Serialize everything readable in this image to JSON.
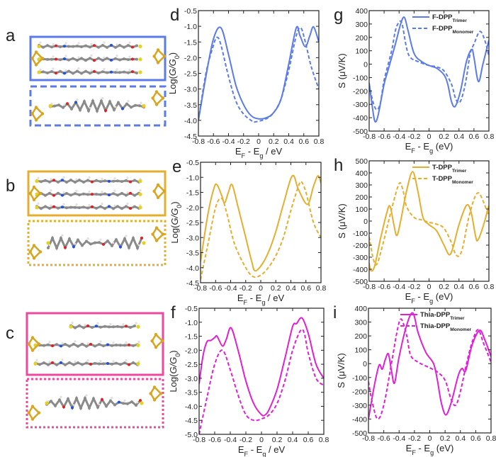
{
  "panel_letters": {
    "a": "a",
    "b": "b",
    "c": "c",
    "d": "d",
    "e": "e",
    "f": "f",
    "g": "g",
    "h": "h",
    "i": "i"
  },
  "colors": {
    "F-DPP": "#5b7be8",
    "T-DPP": "#e6ae2e",
    "Thia-DPP": "#e01fd6",
    "frame_a": "#5b7be8",
    "frame_b": "#e6ae2e",
    "frame_c": "#ec4a9e",
    "gold": "#d9a520",
    "carbon": "#8a8a8a",
    "sulfur": "#e8d020",
    "oxygen": "#e02020",
    "nitrogen": "#2050e0",
    "hydrogen": "#e6e6e6"
  },
  "structures": [
    {
      "panel": "a",
      "trimer_frame": "solid",
      "monomer_frame": "dashed",
      "color": "#5b7be8"
    },
    {
      "panel": "b",
      "trimer_frame": "solid",
      "monomer_frame": "dotted",
      "color": "#e6ae2e"
    },
    {
      "panel": "c",
      "trimer_frame": "solid",
      "monomer_frame": "dotted",
      "color": "#ec4a9e"
    }
  ],
  "chart_data": [
    {
      "panel": "d",
      "type": "line",
      "color": "#5b7be8",
      "xlabel_parts": [
        [
          "E",
          ""
        ],
        [
          "F",
          "sub"
        ],
        [
          " - E",
          ""
        ],
        [
          "g",
          "sub"
        ],
        [
          " / eV",
          ""
        ]
      ],
      "ylabel_parts": [
        [
          "Log(",
          ""
        ],
        [
          "G/G",
          "i"
        ],
        [
          "0",
          "sub"
        ],
        [
          ")",
          ""
        ]
      ],
      "xlim": [
        -0.8,
        0.8
      ],
      "ylim": [
        -4.5,
        -0.5
      ],
      "xticks": [
        "-0.8",
        "-0.6",
        "-0.4",
        "-0.2",
        "0",
        "0.2",
        "0.4",
        "0.6",
        "0.8"
      ],
      "yticks": [
        "-4.5",
        "-4.0",
        "-3.5",
        "-3.0",
        "-2.5",
        "-2.0",
        "-1.5",
        "-1.0",
        "-0.5"
      ],
      "legend": null,
      "series": [
        {
          "style": "solid",
          "x": [
            -0.8,
            -0.7,
            -0.6,
            -0.5,
            -0.4,
            -0.3,
            -0.2,
            -0.1,
            0,
            0.1,
            0.2,
            0.3,
            0.4,
            0.5,
            0.55,
            0.62,
            0.68,
            0.73,
            0.8
          ],
          "y": [
            -4.0,
            -2.6,
            -1.4,
            -1.05,
            -1.9,
            -2.9,
            -3.5,
            -3.85,
            -3.95,
            -3.92,
            -3.75,
            -3.3,
            -2.2,
            -1.05,
            -1.3,
            -1.65,
            -1.3,
            -1.02,
            -1.5
          ]
        },
        {
          "style": "dashed",
          "x": [
            -0.8,
            -0.7,
            -0.6,
            -0.55,
            -0.5,
            -0.4,
            -0.3,
            -0.2,
            -0.1,
            -0.05,
            0.1,
            0.2,
            0.3,
            0.4,
            0.5,
            0.56,
            0.62,
            0.7,
            0.8
          ],
          "y": [
            -4.0,
            -2.5,
            -1.6,
            -1.35,
            -1.6,
            -2.6,
            -3.4,
            -3.8,
            -4.0,
            -4.05,
            -3.95,
            -3.75,
            -3.3,
            -2.4,
            -1.3,
            -1.05,
            -1.5,
            -2.3,
            -3.0
          ]
        }
      ]
    },
    {
      "panel": "e",
      "type": "line",
      "color": "#e6ae2e",
      "xlabel_parts": [
        [
          "E",
          ""
        ],
        [
          "F",
          "sub"
        ],
        [
          " - E",
          ""
        ],
        [
          "g",
          "sub"
        ],
        [
          " / eV",
          ""
        ]
      ],
      "ylabel_parts": [
        [
          "Log(",
          ""
        ],
        [
          "G/G",
          "i"
        ],
        [
          "0",
          "sub"
        ],
        [
          ")",
          ""
        ]
      ],
      "xlim": [
        -0.8,
        0.8
      ],
      "ylim": [
        -4.5,
        -0.5
      ],
      "xticks": [
        "-0.8",
        "-0.6",
        "-0.4",
        "-0.2",
        "0",
        "0.2",
        "0.4",
        "0.6",
        "0.8"
      ],
      "yticks": [
        "-4.5",
        "-4.0",
        "-3.5",
        "-3.0",
        "-2.5",
        "-2.0",
        "-1.5",
        "-1.0",
        "-0.5"
      ],
      "legend": null,
      "series": [
        {
          "style": "solid",
          "x": [
            -0.8,
            -0.7,
            -0.62,
            -0.58,
            -0.52,
            -0.48,
            -0.43,
            -0.38,
            -0.3,
            -0.2,
            -0.12,
            -0.08,
            0,
            0.1,
            0.2,
            0.3,
            0.42,
            0.5,
            0.62,
            0.7,
            0.76,
            0.8
          ],
          "y": [
            -3.8,
            -2.2,
            -1.35,
            -1.25,
            -1.6,
            -1.85,
            -1.5,
            -1.25,
            -2.0,
            -3.0,
            -3.8,
            -4.1,
            -3.95,
            -3.5,
            -2.8,
            -1.9,
            -0.95,
            -1.4,
            -1.9,
            -1.3,
            -0.95,
            -1.2
          ]
        },
        {
          "style": "dashed",
          "x": [
            -0.8,
            -0.7,
            -0.6,
            -0.52,
            -0.45,
            -0.35,
            -0.2,
            -0.1,
            0,
            0.1,
            0.2,
            0.3,
            0.4,
            0.5,
            0.54,
            0.6,
            0.7,
            0.8
          ],
          "y": [
            -4.4,
            -3.2,
            -2.0,
            -1.7,
            -2.2,
            -3.2,
            -4.0,
            -4.3,
            -4.25,
            -4.0,
            -3.6,
            -3.0,
            -2.1,
            -1.3,
            -1.15,
            -1.5,
            -2.5,
            -3.0
          ]
        }
      ]
    },
    {
      "panel": "f",
      "type": "line",
      "color": "#e01fd6",
      "xlabel_parts": [
        [
          "E",
          ""
        ],
        [
          "F",
          "sub"
        ],
        [
          " - E",
          ""
        ],
        [
          "g",
          "sub"
        ],
        [
          " / eV",
          ""
        ]
      ],
      "ylabel_parts": [
        [
          "Log(",
          ""
        ],
        [
          "G/G",
          "i"
        ],
        [
          "0",
          "sub"
        ],
        [
          ")",
          ""
        ]
      ],
      "xlim": [
        -0.8,
        0.8
      ],
      "ylim": [
        -5.0,
        -0.5
      ],
      "xticks": [
        "-0.8",
        "-0.6",
        "-0.4",
        "-0.2",
        "0",
        "0.2",
        "0.4",
        "0.6",
        "0.8"
      ],
      "yticks": [
        "-5.0",
        "-4.5",
        "-4.0",
        "-3.5",
        "-3.0",
        "-2.5",
        "-2.0",
        "-1.5",
        "-1.0",
        "-0.5"
      ],
      "legend": null,
      "series": [
        {
          "style": "solid",
          "x": [
            -0.8,
            -0.75,
            -0.7,
            -0.65,
            -0.6,
            -0.57,
            -0.5,
            -0.45,
            -0.39,
            -0.3,
            -0.2,
            -0.1,
            0,
            0.05,
            0.1,
            0.2,
            0.3,
            0.4,
            0.45,
            0.52,
            0.6,
            0.7,
            0.8
          ],
          "y": [
            -3.2,
            -2.2,
            -1.7,
            -1.65,
            -1.55,
            -1.5,
            -1.85,
            -1.6,
            -1.2,
            -2.0,
            -3.1,
            -3.9,
            -4.3,
            -4.3,
            -4.1,
            -3.4,
            -2.3,
            -1.15,
            -1.05,
            -0.85,
            -1.4,
            -2.5,
            -3.0
          ]
        },
        {
          "style": "dashed",
          "x": [
            -0.8,
            -0.7,
            -0.6,
            -0.5,
            -0.4,
            -0.3,
            -0.2,
            -0.1,
            0,
            0.1,
            0.2,
            0.3,
            0.4,
            0.5,
            0.55,
            0.6,
            0.7,
            0.8
          ],
          "y": [
            -5.0,
            -3.7,
            -2.5,
            -2.0,
            -2.7,
            -3.6,
            -4.3,
            -4.5,
            -4.45,
            -4.3,
            -3.9,
            -3.1,
            -2.0,
            -1.3,
            -1.4,
            -2.1,
            -3.0,
            -3.25
          ]
        }
      ]
    },
    {
      "panel": "g",
      "type": "line",
      "color": "#5b7be8",
      "xlabel_parts": [
        [
          "E",
          ""
        ],
        [
          "F",
          "sub"
        ],
        [
          " - E",
          ""
        ],
        [
          "g",
          "sub"
        ],
        [
          " (eV)",
          ""
        ]
      ],
      "ylabel_parts": [
        [
          "S (μV/K)",
          ""
        ]
      ],
      "xlim": [
        -0.8,
        0.8
      ],
      "ylim": [
        -500,
        400
      ],
      "xticks": [
        "-0.8",
        "-0.6",
        "-0.4",
        "-0.2",
        "0",
        "0.2",
        "0.4",
        "0.6",
        "0.8"
      ],
      "yticks": [
        "-500",
        "-400",
        "-300",
        "-200",
        "-100",
        "0",
        "100",
        "200",
        "300",
        "400"
      ],
      "legend": {
        "placement": "top-right",
        "entries": [
          {
            "style": "solid",
            "name": "F-DPP",
            "sub": "Trimer"
          },
          {
            "style": "dashed",
            "name": "F-DPP",
            "sub": "Monomer"
          }
        ]
      },
      "series": [
        {
          "style": "solid",
          "name": "F-DPP Trimer",
          "x": [
            -0.8,
            -0.75,
            -0.72,
            -0.68,
            -0.6,
            -0.55,
            -0.45,
            -0.38,
            -0.33,
            -0.28,
            -0.2,
            -0.1,
            0,
            0.1,
            0.2,
            0.25,
            0.3,
            0.35,
            0.42,
            0.5,
            0.57,
            0.6,
            0.66,
            0.72,
            0.8
          ],
          "y": [
            -140,
            -350,
            -430,
            -380,
            -150,
            -50,
            150,
            300,
            350,
            250,
            80,
            20,
            -10,
            -30,
            -80,
            -150,
            -280,
            -315,
            -200,
            20,
            110,
            50,
            -130,
            0,
            180
          ]
        },
        {
          "style": "dashed",
          "name": "F-DPP Monomer",
          "x": [
            -0.8,
            -0.75,
            -0.7,
            -0.65,
            -0.6,
            -0.5,
            -0.45,
            -0.4,
            -0.36,
            -0.3,
            -0.25,
            -0.15,
            0,
            0.1,
            0.2,
            0.3,
            0.35,
            0.4,
            0.45,
            0.5,
            0.55,
            0.6,
            0.68,
            0.75,
            0.8
          ],
          "y": [
            -150,
            -280,
            -340,
            -290,
            -120,
            100,
            250,
            315,
            300,
            120,
            50,
            20,
            -10,
            -20,
            -50,
            -150,
            -250,
            -290,
            -230,
            -100,
            80,
            150,
            245,
            170,
            60
          ]
        }
      ]
    },
    {
      "panel": "h",
      "type": "line",
      "color": "#e6ae2e",
      "xlabel_parts": [
        [
          "E",
          ""
        ],
        [
          "F",
          "sub"
        ],
        [
          " - E",
          ""
        ],
        [
          "g",
          "sub"
        ],
        [
          " (eV)",
          ""
        ]
      ],
      "ylabel_parts": [
        [
          "S (μV/K)",
          ""
        ]
      ],
      "xlim": [
        -0.8,
        0.8
      ],
      "ylim": [
        -500,
        500
      ],
      "xticks": [
        "-0.8",
        "-0.6",
        "-0.4",
        "-0.2",
        "0",
        "0.2",
        "0.4",
        "0.6",
        "0.8"
      ],
      "yticks": [
        "-500",
        "-400",
        "-300",
        "-200",
        "-100",
        "0",
        "100",
        "200",
        "300",
        "400",
        "500"
      ],
      "legend": {
        "placement": "top-right",
        "entries": [
          {
            "style": "solid",
            "name": "T-DPP",
            "sub": "Trimer"
          },
          {
            "style": "dashed",
            "name": "T-DPP",
            "sub": "Monomer"
          }
        ]
      },
      "series": [
        {
          "style": "solid",
          "name": "T-DPP Trimer",
          "x": [
            -0.8,
            -0.78,
            -0.73,
            -0.65,
            -0.56,
            -0.52,
            -0.47,
            -0.43,
            -0.38,
            -0.3,
            -0.22,
            -0.15,
            -0.08,
            0,
            0.1,
            0.2,
            0.27,
            0.32,
            0.4,
            0.5,
            0.56,
            0.62,
            0.65,
            0.72,
            0.8
          ],
          "y": [
            -350,
            -410,
            -380,
            -150,
            80,
            120,
            -30,
            -120,
            0,
            250,
            410,
            250,
            30,
            -30,
            -80,
            -200,
            -280,
            -220,
            -30,
            130,
            80,
            -120,
            -160,
            -50,
            130
          ]
        },
        {
          "style": "dashed",
          "name": "T-DPP Monomer",
          "x": [
            -0.8,
            -0.75,
            -0.7,
            -0.62,
            -0.5,
            -0.4,
            -0.35,
            -0.3,
            -0.2,
            -0.1,
            0,
            0.1,
            0.2,
            0.3,
            0.35,
            0.4,
            0.45,
            0.52,
            0.6,
            0.66,
            0.72,
            0.8
          ],
          "y": [
            -130,
            -300,
            -360,
            -200,
            100,
            310,
            260,
            120,
            30,
            10,
            -10,
            -25,
            -60,
            -180,
            -270,
            -290,
            -220,
            0,
            180,
            235,
            170,
            40
          ]
        }
      ]
    },
    {
      "panel": "i",
      "type": "line",
      "color": "#e01fd6",
      "xlabel_parts": [
        [
          "E",
          ""
        ],
        [
          "F",
          "sub"
        ],
        [
          " - E",
          ""
        ],
        [
          "g",
          "sub"
        ],
        [
          " (eV)",
          ""
        ]
      ],
      "ylabel_parts": [
        [
          "S (μV/K)",
          ""
        ]
      ],
      "xlim": [
        -0.8,
        0.8
      ],
      "ylim": [
        -500,
        400
      ],
      "xticks": [
        "-0.8",
        "-0.6",
        "-0.4",
        "-0.2",
        "0",
        "0.2",
        "0.4",
        "0.6",
        "0.8"
      ],
      "yticks": [
        "-500",
        "-400",
        "-300",
        "-200",
        "-100",
        "0",
        "100",
        "200",
        "300",
        "400"
      ],
      "legend": {
        "placement": "top-right",
        "entries": [
          {
            "style": "solid",
            "name": "Thia-DPP",
            "sub": "Trimer"
          },
          {
            "style": "dashed",
            "name": "Thia-DPP",
            "sub": "Monomer"
          }
        ]
      },
      "series": [
        {
          "style": "solid",
          "name": "Thia-DPP Trimer",
          "x": [
            -0.8,
            -0.72,
            -0.66,
            -0.62,
            -0.58,
            -0.54,
            -0.5,
            -0.46,
            -0.4,
            -0.3,
            -0.22,
            -0.15,
            -0.05,
            0.05,
            0.1,
            0.15,
            0.21,
            0.28,
            0.37,
            0.42,
            0.47,
            0.55,
            0.65,
            0.72,
            0.8
          ],
          "y": [
            -400,
            -150,
            -10,
            -40,
            30,
            70,
            -50,
            -140,
            50,
            280,
            365,
            220,
            80,
            0,
            -120,
            -280,
            -370,
            -280,
            -90,
            -35,
            -50,
            130,
            240,
            170,
            50
          ]
        },
        {
          "style": "dashed",
          "name": "Thia-DPP Monomer",
          "x": [
            -0.8,
            -0.75,
            -0.68,
            -0.6,
            -0.5,
            -0.42,
            -0.37,
            -0.3,
            -0.25,
            -0.15,
            0,
            0.1,
            0.2,
            0.28,
            0.34,
            0.4,
            0.48,
            0.55,
            0.63,
            0.7,
            0.8
          ],
          "y": [
            -130,
            -280,
            -400,
            -300,
            0,
            250,
            320,
            200,
            60,
            10,
            -30,
            -60,
            -120,
            -260,
            -300,
            -200,
            0,
            150,
            245,
            150,
            10
          ]
        }
      ]
    }
  ]
}
